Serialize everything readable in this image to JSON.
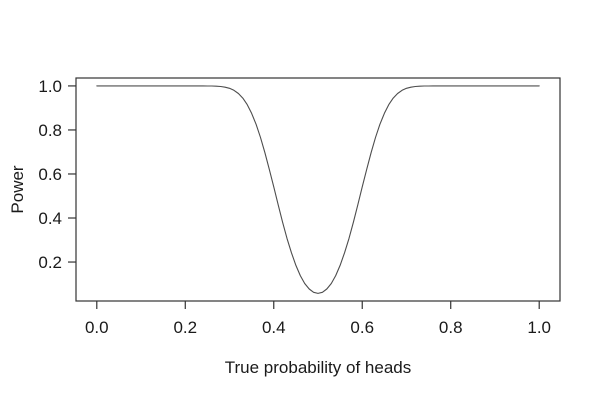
{
  "figure": {
    "background_color": "#ffffff",
    "text_color": "#1a1a1a",
    "axis_color": "#333333",
    "curve_color": "#4d4d4d"
  },
  "chart_data": {
    "type": "line",
    "title": "",
    "xlabel": "True probability of heads",
    "ylabel": "Power",
    "grid": false,
    "legend": null,
    "xlim": [
      -0.047,
      1.047
    ],
    "ylim": [
      0.023,
      1.036
    ],
    "x_ticks": [
      0,
      0.2,
      0.4,
      0.6,
      0.8,
      1
    ],
    "x_tick_labels": [
      "0.0",
      "0.2",
      "0.4",
      "0.6",
      "0.8",
      "1.0"
    ],
    "y_ticks": [
      0.2,
      0.4,
      0.6,
      0.8,
      1
    ],
    "y_tick_labels": [
      "0.2",
      "0.4",
      "0.6",
      "0.8",
      "1.0"
    ],
    "series": [
      {
        "name": "power-curve",
        "x": [
          0,
          0.01,
          0.02,
          0.03,
          0.04,
          0.05,
          0.06,
          0.07,
          0.08,
          0.09,
          0.1,
          0.11,
          0.12,
          0.13,
          0.14,
          0.15,
          0.16,
          0.17,
          0.18,
          0.19,
          0.2,
          0.21,
          0.22,
          0.23,
          0.24,
          0.25,
          0.26,
          0.27,
          0.28,
          0.29,
          0.3,
          0.31,
          0.32,
          0.33,
          0.34,
          0.35,
          0.36,
          0.37,
          0.38,
          0.39,
          0.4,
          0.41,
          0.42,
          0.43,
          0.44,
          0.45,
          0.46,
          0.47,
          0.48,
          0.49,
          0.5,
          0.51,
          0.52,
          0.53,
          0.54,
          0.55,
          0.56,
          0.57,
          0.58,
          0.59,
          0.6,
          0.61,
          0.62,
          0.63,
          0.64,
          0.65,
          0.66,
          0.67,
          0.68,
          0.69,
          0.7,
          0.71,
          0.72,
          0.73,
          0.74,
          0.75,
          0.76,
          0.77,
          0.78,
          0.79,
          0.8,
          0.81,
          0.82,
          0.83,
          0.84,
          0.85,
          0.86,
          0.87,
          0.88,
          0.89,
          0.9,
          0.91,
          0.92,
          0.93,
          0.94,
          0.95,
          0.96,
          0.97,
          0.98,
          0.99,
          1
        ],
        "y": [
          1,
          1,
          1,
          1,
          1,
          1,
          1,
          1,
          1,
          1,
          1,
          1,
          1,
          1,
          1,
          1,
          1,
          1,
          1,
          1,
          1,
          1,
          1,
          1,
          0.9999,
          0.9998,
          0.9995,
          0.9988,
          0.9973,
          0.9944,
          0.989,
          0.98,
          0.9658,
          0.9446,
          0.915,
          0.8755,
          0.8257,
          0.7658,
          0.6967,
          0.6208,
          0.5407,
          0.4596,
          0.3808,
          0.3072,
          0.2413,
          0.1846,
          0.1383,
          0.1025,
          0.0773,
          0.0624,
          0.0574,
          0.0624,
          0.0773,
          0.1025,
          0.1383,
          0.1846,
          0.2413,
          0.3072,
          0.3808,
          0.4596,
          0.5407,
          0.6208,
          0.6967,
          0.7658,
          0.8257,
          0.8755,
          0.915,
          0.9446,
          0.9658,
          0.98,
          0.989,
          0.9944,
          0.9973,
          0.9988,
          0.9995,
          0.9998,
          0.9999,
          1,
          1,
          1,
          1,
          1,
          1,
          1,
          1,
          1,
          1,
          1,
          1,
          1,
          1,
          1,
          1,
          1,
          1,
          1,
          1,
          1,
          1,
          1,
          1
        ]
      }
    ]
  }
}
